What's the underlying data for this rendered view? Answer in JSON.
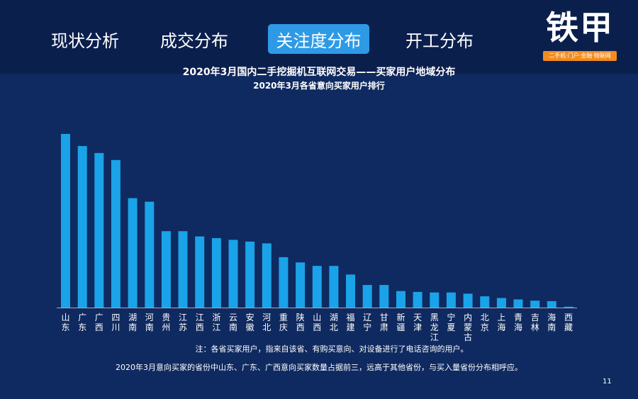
{
  "nav": {
    "tabs": [
      {
        "label": "现状分析",
        "active": false
      },
      {
        "label": "成交分布",
        "active": false
      },
      {
        "label": "关注度分布",
        "active": true
      },
      {
        "label": "开工分布",
        "active": false
      }
    ]
  },
  "logo": {
    "text": "铁甲",
    "tagline": "二手机·门户·金融·物联网"
  },
  "page_number": "11",
  "notes": {
    "footnote": "注：各省买家用户，指来自该省、有购买意向、对设备进行了电话咨询的用户。",
    "summary": "2020年3月意向买家的省份中山东、广东、广西意向买家数量占据前三，远高于其他省份，与买入量省份分布相呼应。"
  },
  "colors": {
    "background": "#0f2a60",
    "header": "#0b1f4d",
    "bar": "#1aa3e8",
    "accent": "#2e9ae6",
    "logo_bar": "#f28c1e"
  },
  "chart_data": {
    "type": "bar",
    "title": "2020年3月国内二手挖掘机互联网交易——买家用户地域分布",
    "subtitle": "2020年3月各省意向买家用户排行",
    "categories": [
      "山东",
      "广东",
      "广西",
      "四川",
      "湖南",
      "河南",
      "贵州",
      "江苏",
      "江西",
      "浙江",
      "云南",
      "安徽",
      "河北",
      "重庆",
      "陕西",
      "山西",
      "湖北",
      "福建",
      "辽宁",
      "甘肃",
      "新疆",
      "天津",
      "黑龙江",
      "宁夏",
      "内蒙古",
      "北京",
      "上海",
      "青海",
      "吉林",
      "海南",
      "西藏"
    ],
    "values": [
      100,
      93,
      89,
      85,
      63,
      61,
      44,
      44,
      41,
      40,
      39,
      38,
      37,
      29,
      26,
      24,
      24,
      19,
      13,
      13,
      9.5,
      9,
      8.7,
      8.7,
      8,
      6.5,
      5.5,
      4.7,
      4,
      3.7,
      0.5
    ],
    "ylim": [
      0,
      100
    ],
    "xlabel": "",
    "ylabel": "",
    "grid": false
  }
}
